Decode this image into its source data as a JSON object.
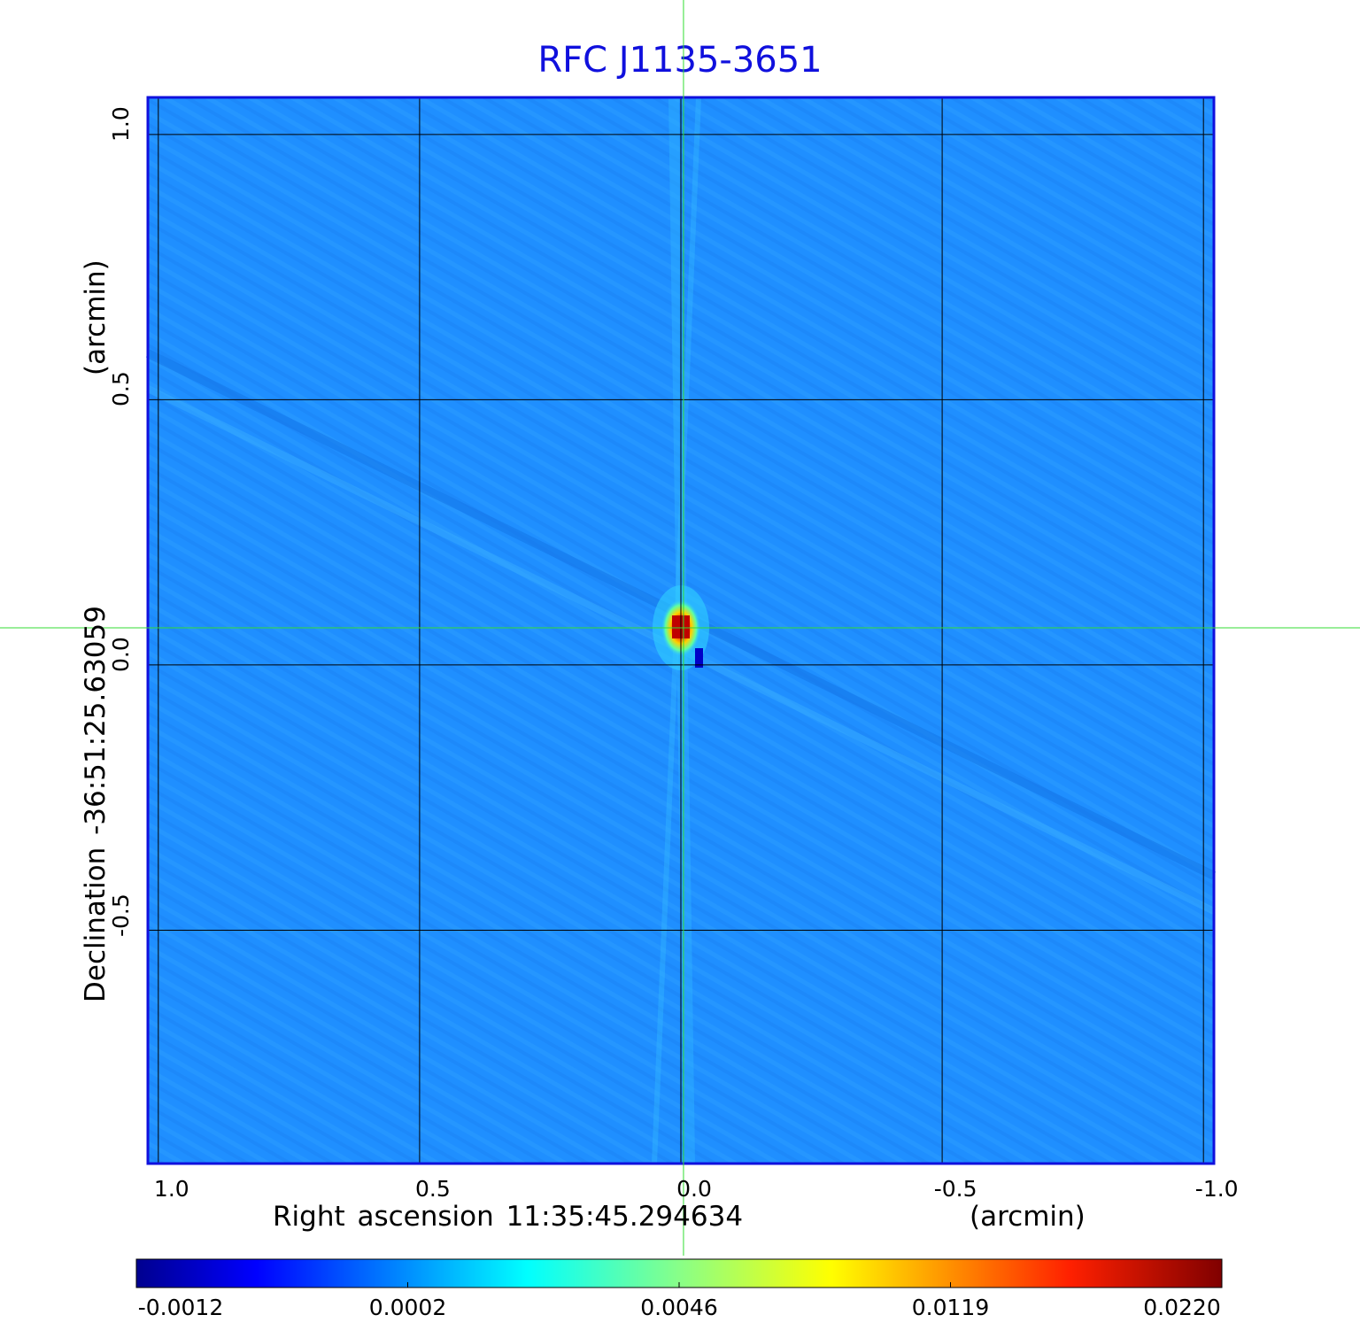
{
  "chart_data": {
    "type": "heatmap",
    "title": "RFC J1135-3651",
    "xlabel": "Right ascension  11:35:45.294634",
    "xunit": "(arcmin)",
    "ylabel": "Declination  -36:51:25.63059",
    "yunit": "(arcmin)",
    "xlim": [
      1.02,
      -1.02
    ],
    "ylim": [
      -0.94,
      1.07
    ],
    "x_ticks": [
      "1.0",
      "0.5",
      "0.0",
      "-0.5",
      "-1.0"
    ],
    "x_tick_values": [
      1.0,
      0.5,
      0.0,
      -0.5,
      -1.0
    ],
    "y_ticks": [
      "-0.5",
      "0.0",
      "0.5",
      "1.0"
    ],
    "y_tick_values": [
      -0.5,
      0.0,
      0.5,
      1.0
    ],
    "grid": true,
    "crosshair": {
      "x": -0.005,
      "y": 0.07
    },
    "source": {
      "x": 0.0,
      "y": 0.07,
      "peak": 0.022
    },
    "colorbar": {
      "colormap": "jet",
      "ticks": [
        "-0.0012",
        "0.0002",
        "0.0046",
        "0.0119",
        "0.0220"
      ],
      "values": [
        -0.0012,
        0.0002,
        0.0046,
        0.0119,
        0.022
      ]
    },
    "colors": {
      "title": "#1010dd",
      "frame": "#1010dd",
      "crosshair": "#33dd33",
      "background_map": "#1f8fff"
    }
  }
}
